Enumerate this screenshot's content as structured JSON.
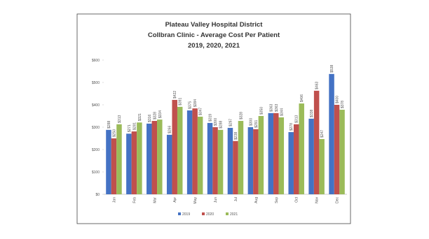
{
  "chart_data": {
    "type": "bar",
    "title": [
      "Plateau Valley Hospital District",
      "Collbran Clinic  - Average Cost Per Patient",
      "2019, 2020, 2021"
    ],
    "categories": [
      "Jan",
      "Feb",
      "Mar",
      "Apr",
      "May",
      "Jun",
      "Jul",
      "Aug",
      "Sep",
      "Oct",
      "Nov",
      "Dec"
    ],
    "series": [
      {
        "name": "2019",
        "color": "#4472c4",
        "values": [
          288,
          271,
          316,
          266,
          375,
          319,
          297,
          300,
          363,
          278,
          338,
          538
        ],
        "value_labels": [
          "$288",
          "$271",
          "$316",
          "$266",
          "$375",
          "$319",
          "$297",
          "$300",
          "$363",
          "$278",
          "$338",
          "$538"
        ]
      },
      {
        "name": "2020",
        "color": "#c0504d",
        "values": [
          250,
          281,
          328,
          422,
          384,
          300,
          238,
          291,
          363,
          313,
          463,
          400
        ],
        "value_labels": [
          "$250",
          "$281",
          "$328",
          "$422",
          "$384",
          "$300",
          "$238",
          "$291",
          "$363",
          "$313",
          "$463",
          "$400"
        ]
      },
      {
        "name": "2021",
        "color": "#9bbb59",
        "values": [
          313,
          321,
          334,
          391,
          347,
          288,
          328,
          350,
          344,
          406,
          247,
          378
        ],
        "value_labels": [
          "$313",
          "$321",
          "$334",
          "$391",
          "$347",
          "$288",
          "$328",
          "$350",
          "$344",
          "$406",
          "$247",
          "$378"
        ]
      }
    ],
    "ylim": [
      0,
      600
    ],
    "yticks": [
      {
        "value": 0,
        "label": "$0"
      },
      {
        "value": 100,
        "label": "$100"
      },
      {
        "value": 200,
        "label": "$200"
      },
      {
        "value": 300,
        "label": "$300"
      },
      {
        "value": 400,
        "label": "$400"
      },
      {
        "value": 500,
        "label": "$500"
      },
      {
        "value": 600,
        "label": "$600"
      }
    ],
    "grid": false,
    "legend": "bottom"
  }
}
